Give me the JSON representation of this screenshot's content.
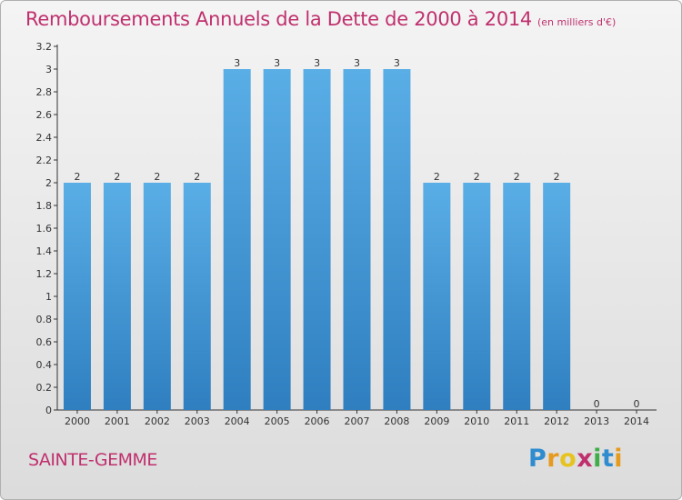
{
  "title": "Remboursements Annuels de la Dette de 2000 à 2014",
  "title_unit": "(en milliers d'€)",
  "commune": "SAINTE-GEMME",
  "logo": {
    "text": "Proxiti",
    "letters": [
      "P",
      "r",
      "o",
      "x",
      "i",
      "t",
      "i"
    ]
  },
  "colors": {
    "bar": "#5aaee6",
    "bar_dark": "#2f7fc0",
    "title": "#c0306e",
    "axis": "#333333"
  },
  "chart_data": {
    "type": "bar",
    "categories": [
      "2000",
      "2001",
      "2002",
      "2003",
      "2004",
      "2005",
      "2006",
      "2007",
      "2008",
      "2009",
      "2010",
      "2011",
      "2012",
      "2013",
      "2014"
    ],
    "values": [
      2,
      2,
      2,
      2,
      3,
      3,
      3,
      3,
      3,
      2,
      2,
      2,
      2,
      0,
      0
    ],
    "data_labels": [
      "2",
      "2",
      "2",
      "2",
      "3",
      "3",
      "3",
      "3",
      "3",
      "2",
      "2",
      "2",
      "2",
      "0",
      "0"
    ],
    "y_ticks": [
      "0",
      "0.2",
      "0.4",
      "0.6",
      "0.8",
      "1",
      "1.2",
      "1.4",
      "1.6",
      "1.8",
      "2",
      "2.2",
      "2.4",
      "2.6",
      "2.8",
      "3",
      "3.2"
    ],
    "ylim": [
      0,
      3.2
    ],
    "grid": false,
    "legend": "none"
  }
}
